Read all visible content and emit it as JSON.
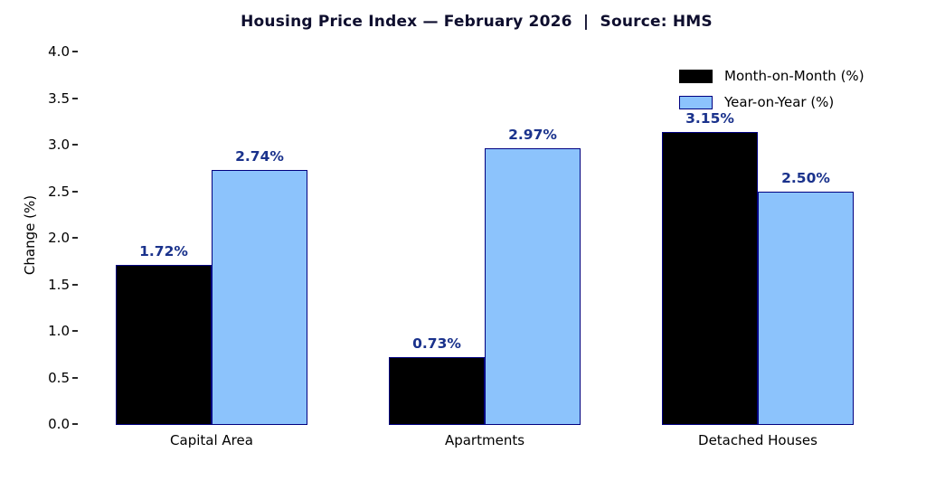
{
  "chart_data": {
    "type": "bar",
    "title": "Housing Price Index — February 2026  |  Source: HMS",
    "title_color": "#0e0e2e",
    "ylabel": "Change (%)",
    "xlabel": "",
    "categories": [
      "Capital Area",
      "Apartments",
      "Detached Houses"
    ],
    "series": [
      {
        "name": "Month-on-Month (%)",
        "values": [
          1.72,
          0.73,
          3.15
        ],
        "labels": [
          "1.72%",
          "0.73%",
          "3.15%"
        ],
        "fill": "#000000",
        "edge": "#000080"
      },
      {
        "name": "Year-on-Year (%)",
        "values": [
          2.74,
          2.97,
          2.5
        ],
        "labels": [
          "2.74%",
          "2.97%",
          "2.50%"
        ],
        "fill": "#8CC3FC",
        "edge": "#000080"
      }
    ],
    "ylim": [
      0.0,
      4.0
    ],
    "yticks": [
      "0.0",
      "0.5",
      "1.0",
      "1.5",
      "2.0",
      "2.5",
      "3.0",
      "3.5",
      "4.0"
    ],
    "value_label_color": "#1a328c",
    "grid": false,
    "legend_position": "upper right",
    "background": "#ffffff"
  }
}
